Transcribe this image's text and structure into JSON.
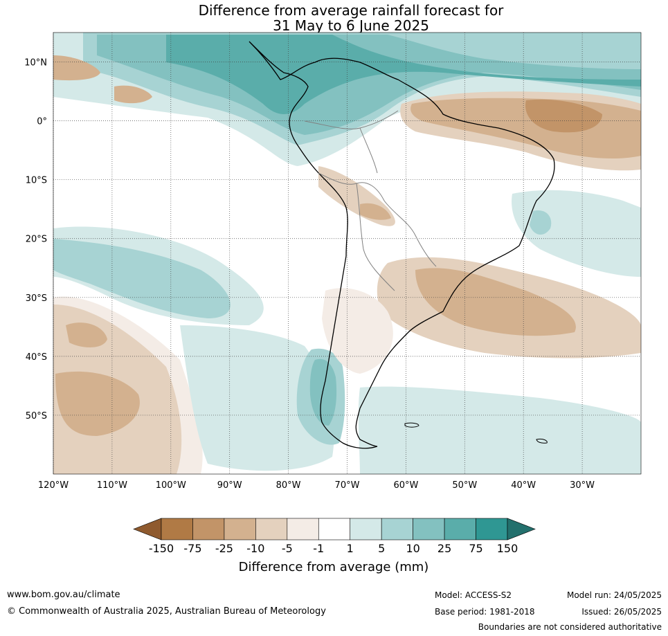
{
  "title": {
    "line1": "Difference from average rainfall forecast for",
    "line2": "31 May to 6 June 2025"
  },
  "map": {
    "lat_labels": [
      "10°N",
      "0°",
      "10°S",
      "20°S",
      "30°S",
      "40°S",
      "50°S"
    ],
    "lat_values": [
      10,
      0,
      -10,
      -20,
      -30,
      -40,
      -50
    ],
    "lon_labels": [
      "120°W",
      "110°W",
      "100°W",
      "90°W",
      "80°W",
      "70°W",
      "60°W",
      "50°W",
      "40°W",
      "30°W"
    ],
    "lon_values": [
      -120,
      -110,
      -100,
      -90,
      -80,
      -70,
      -60,
      -50,
      -40,
      -30
    ],
    "lat_range": [
      -60,
      15
    ],
    "lon_range": [
      -120,
      -20
    ]
  },
  "colorbar": {
    "title": "Difference from average (mm)",
    "ticks": [
      "-150",
      "-75",
      "-25",
      "-10",
      "-5",
      "-1",
      "1",
      "5",
      "10",
      "25",
      "75",
      "150"
    ],
    "colors": [
      "#8f5a2e",
      "#b07a45",
      "#c29468",
      "#d3b18f",
      "#e4d1be",
      "#f4ece6",
      "#ffffff",
      "#d4e9e8",
      "#a7d3d3",
      "#83c1c0",
      "#5aadaa",
      "#2f9793",
      "#23706d"
    ]
  },
  "footer": {
    "website": "www.bom.gov.au/climate",
    "copyright": "© Commonwealth of Australia 2025, Australian Bureau of Meteorology",
    "model": "Model: ACCESS-S2",
    "base_period": "Base period: 1981-2018",
    "model_run": "Model run: 24/05/2025",
    "issued": "Issued: 26/05/2025",
    "disclaimer": "Boundaries are not considered authoritative"
  }
}
